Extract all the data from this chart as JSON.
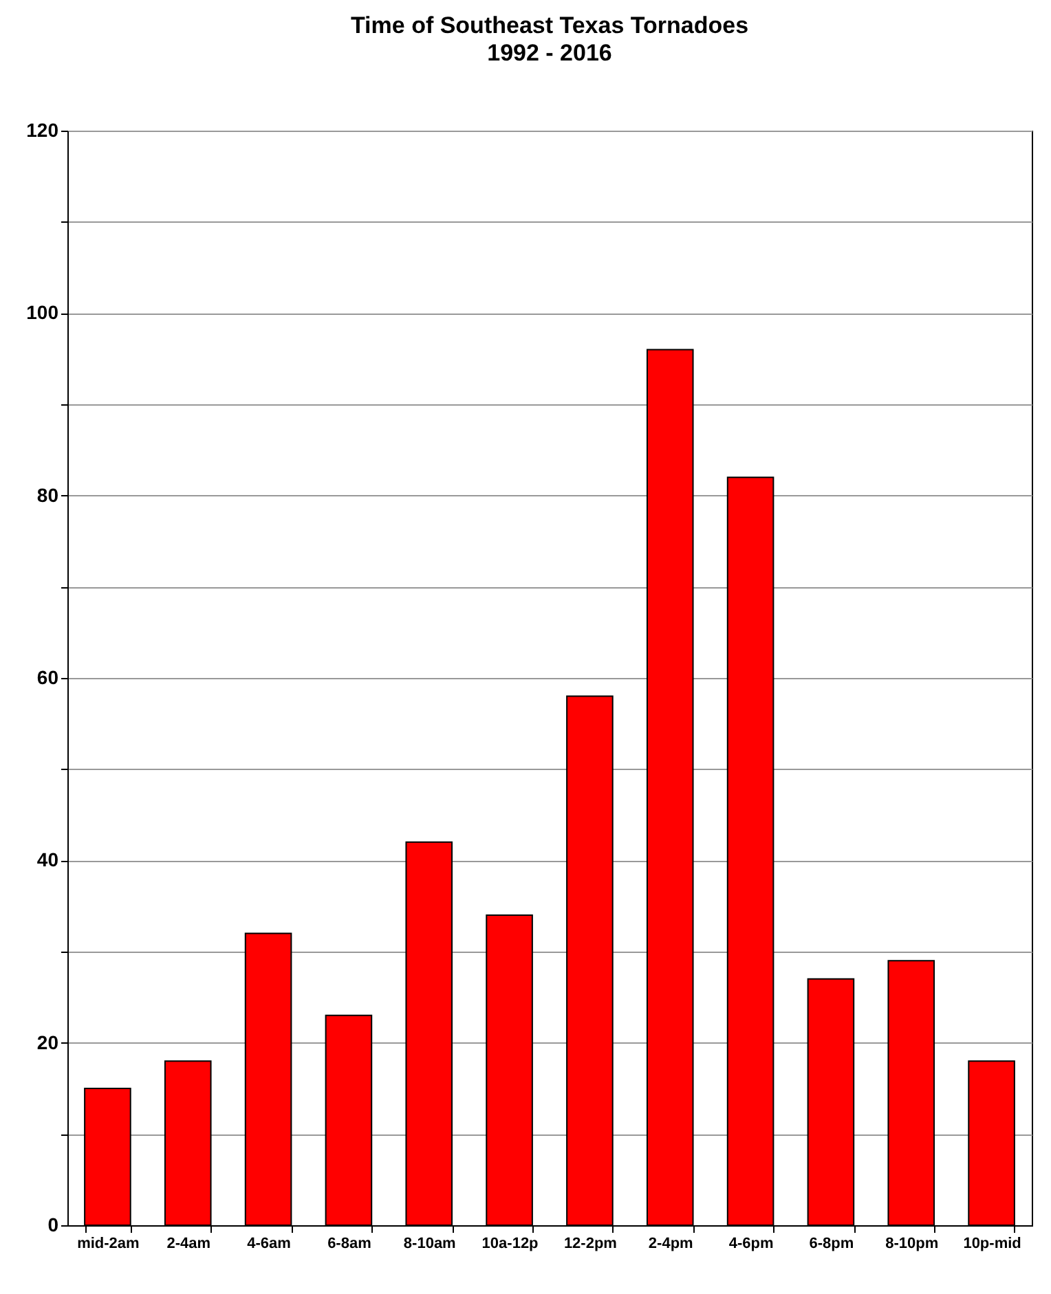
{
  "chart_data": {
    "type": "bar",
    "title": "Time of Southeast Texas Tornadoes",
    "subtitle": "1992 - 2016",
    "categories": [
      "mid-2am",
      "2-4am",
      "4-6am",
      "6-8am",
      "8-10am",
      "10a-12p",
      "12-2pm",
      "2-4pm",
      "4-6pm",
      "6-8pm",
      "8-10pm",
      "10p-mid"
    ],
    "values": [
      15,
      18,
      32,
      23,
      42,
      34,
      58,
      96,
      82,
      27,
      29,
      18
    ],
    "color": "#ff0000",
    "ylim": [
      0,
      120
    ],
    "yticks": [
      0,
      {
        "value": 10,
        "label": null
      },
      20,
      {
        "value": 30,
        "label": null
      },
      40,
      {
        "value": 50,
        "label": null
      },
      60,
      {
        "value": 70,
        "label": null
      },
      80,
      {
        "value": 90,
        "label": null
      },
      100,
      {
        "value": 110,
        "label": null
      },
      120
    ],
    "grid": "y"
  }
}
